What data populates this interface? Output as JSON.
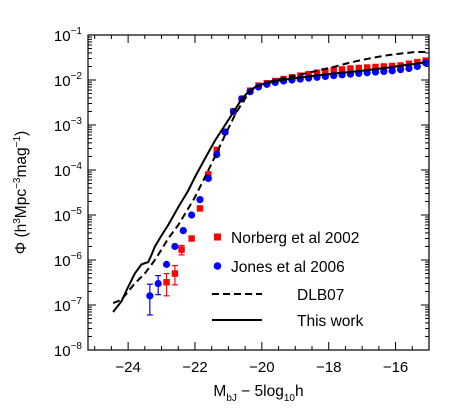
{
  "chart_data": {
    "type": "scatter",
    "title": "",
    "xlabel_parts": [
      "M",
      "bJ",
      " − 5log",
      "10",
      "h"
    ],
    "ylabel_parts": [
      "Φ (h",
      "3",
      "Mpc",
      "−3",
      "mag",
      "−1",
      ")"
    ],
    "xlim": [
      -25.2,
      -15
    ],
    "ylim_log10": [
      -8,
      -1
    ],
    "yscale": "log",
    "x_ticks": [
      -24,
      -22,
      -20,
      -18,
      -16
    ],
    "x_tick_labels": [
      "−24",
      "−22",
      "−20",
      "−18",
      "−16"
    ],
    "y_ticks_log10": [
      -8,
      -7,
      -6,
      -5,
      -4,
      -3,
      -2,
      -1
    ],
    "y_tick_base": "10",
    "y_tick_exponents": [
      "−8",
      "−7",
      "−6",
      "−5",
      "−4",
      "−3",
      "−2",
      "−1"
    ],
    "legend_position": "bottom-right",
    "series": [
      {
        "name": "Norberg et al 2002",
        "kind": "points",
        "marker": "square",
        "color": "#ff0000",
        "x": [
          -22.85,
          -22.6,
          -22.4,
          -22.1,
          -21.85,
          -21.6,
          -21.35,
          -21.1,
          -20.85,
          -20.6,
          -20.35,
          -20.1,
          -19.85,
          -19.6,
          -19.35,
          -19.1,
          -18.85,
          -18.6,
          -18.35,
          -18.1,
          -17.85,
          -17.6,
          -17.35,
          -17.1,
          -16.85,
          -16.6,
          -16.35,
          -16.1,
          -15.85,
          -15.6,
          -15.35,
          -15.1
        ],
        "y": [
          3.2e-07,
          5e-07,
          1.7e-06,
          3e-06,
          1.4e-05,
          8e-05,
          0.00028,
          0.0007,
          0.002,
          0.0038,
          0.0058,
          0.0075,
          0.0085,
          0.0095,
          0.0105,
          0.0115,
          0.0125,
          0.0135,
          0.0145,
          0.0155,
          0.0165,
          0.0172,
          0.018,
          0.0185,
          0.019,
          0.0195,
          0.02,
          0.0205,
          0.021,
          0.023,
          0.025,
          0.027
        ],
        "yerr_low": [
          1.6e-07,
          2.2e-07,
          4e-07,
          0,
          0,
          0,
          0,
          0,
          0,
          0,
          0,
          0,
          0,
          0,
          0,
          0,
          0,
          0,
          0,
          0,
          0,
          0,
          0,
          0,
          0,
          0,
          0,
          0,
          0,
          0,
          0,
          0
        ],
        "yerr_high": [
          1.8e-07,
          2.5e-07,
          4e-07,
          0,
          0,
          0,
          0,
          0,
          0,
          0,
          0,
          0,
          0,
          0,
          0,
          0,
          0,
          0,
          0,
          0,
          0,
          0,
          0,
          0,
          0,
          0,
          0,
          0,
          0,
          0,
          0,
          0
        ]
      },
      {
        "name": "Jones et al 2006",
        "kind": "points",
        "marker": "circle",
        "color": "#0000ff",
        "x": [
          -23.35,
          -23.1,
          -22.85,
          -22.6,
          -22.35,
          -22.1,
          -21.85,
          -21.6,
          -21.35,
          -21.1,
          -20.85,
          -20.6,
          -20.35,
          -20.1,
          -19.85,
          -19.6,
          -19.35,
          -19.1,
          -18.85,
          -18.6,
          -18.35,
          -18.1,
          -17.85,
          -17.6,
          -17.35,
          -17.1,
          -16.85,
          -16.6,
          -16.35,
          -16.1,
          -15.85,
          -15.6,
          -15.35,
          -15.1
        ],
        "y": [
          1.6e-07,
          3e-07,
          8e-07,
          2e-06,
          4.5e-06,
          1e-05,
          2.2e-05,
          6.5e-05,
          0.00022,
          0.0007,
          0.002,
          0.0038,
          0.0055,
          0.007,
          0.008,
          0.0088,
          0.0095,
          0.01,
          0.0105,
          0.011,
          0.0115,
          0.012,
          0.0125,
          0.013,
          0.0135,
          0.014,
          0.0145,
          0.015,
          0.0155,
          0.016,
          0.017,
          0.018,
          0.02,
          0.024
        ],
        "yerr_low": [
          1e-07,
          1.3e-07,
          0,
          0,
          0,
          0,
          0,
          0,
          0,
          0,
          0,
          0,
          0,
          0,
          0,
          0,
          0,
          0,
          0,
          0,
          0,
          0,
          0,
          0,
          0,
          0,
          0,
          0,
          0,
          0,
          0,
          0,
          0,
          0
        ],
        "yerr_high": [
          1.3e-07,
          1.5e-07,
          0,
          0,
          0,
          0,
          0,
          0,
          0,
          0,
          0,
          0,
          0,
          0,
          0,
          0,
          0,
          0,
          0,
          0,
          0,
          0,
          0,
          0,
          0,
          0,
          0,
          0,
          0,
          0,
          0,
          0,
          0,
          0
        ]
      },
      {
        "name": "DLB07",
        "kind": "line",
        "dash": "dashed",
        "color": "#000000",
        "x": [
          -24.45,
          -24.2,
          -24.0,
          -23.8,
          -23.5,
          -23.2,
          -23.0,
          -22.8,
          -22.5,
          -22.2,
          -22.0,
          -21.7,
          -21.4,
          -21.1,
          -20.8,
          -20.6,
          -20.4,
          -20.2,
          -20.0,
          -19.7,
          -19.4,
          -19.0,
          -18.6,
          -18.2,
          -17.8,
          -17.4,
          -17.0,
          -16.6,
          -16.2,
          -15.8,
          -15.4,
          -15.1
        ],
        "y": [
          1.1e-07,
          1.3e-07,
          2e-07,
          3e-07,
          5e-07,
          1e-06,
          1.7e-06,
          3e-06,
          6e-06,
          1.4e-05,
          2.5e-05,
          7e-05,
          0.0002,
          0.0006,
          0.0017,
          0.003,
          0.005,
          0.007,
          0.008,
          0.0095,
          0.0108,
          0.0125,
          0.0145,
          0.017,
          0.02,
          0.024,
          0.028,
          0.032,
          0.036,
          0.039,
          0.042,
          0.042
        ]
      },
      {
        "name": "This work",
        "kind": "line",
        "dash": "solid",
        "color": "#000000",
        "x": [
          -24.45,
          -24.2,
          -24.0,
          -23.8,
          -23.6,
          -23.4,
          -23.3,
          -23.2,
          -23.0,
          -22.8,
          -22.5,
          -22.2,
          -22.0,
          -21.7,
          -21.4,
          -21.1,
          -20.8,
          -20.6,
          -20.4,
          -20.2,
          -20.0,
          -19.7,
          -19.4,
          -19.0,
          -18.6,
          -18.2,
          -17.8,
          -17.4,
          -17.0,
          -16.6,
          -16.2,
          -15.8,
          -15.4,
          -15.1
        ],
        "y": [
          7e-08,
          1.2e-07,
          2.5e-07,
          5e-07,
          8e-07,
          9e-07,
          1.3e-06,
          2e-06,
          3.5e-06,
          6e-06,
          1.5e-05,
          3.5e-05,
          7e-05,
          0.00018,
          0.00045,
          0.001,
          0.0022,
          0.0038,
          0.0055,
          0.007,
          0.008,
          0.009,
          0.01,
          0.011,
          0.012,
          0.013,
          0.014,
          0.015,
          0.016,
          0.0175,
          0.019,
          0.021,
          0.023,
          0.025
        ]
      }
    ]
  }
}
